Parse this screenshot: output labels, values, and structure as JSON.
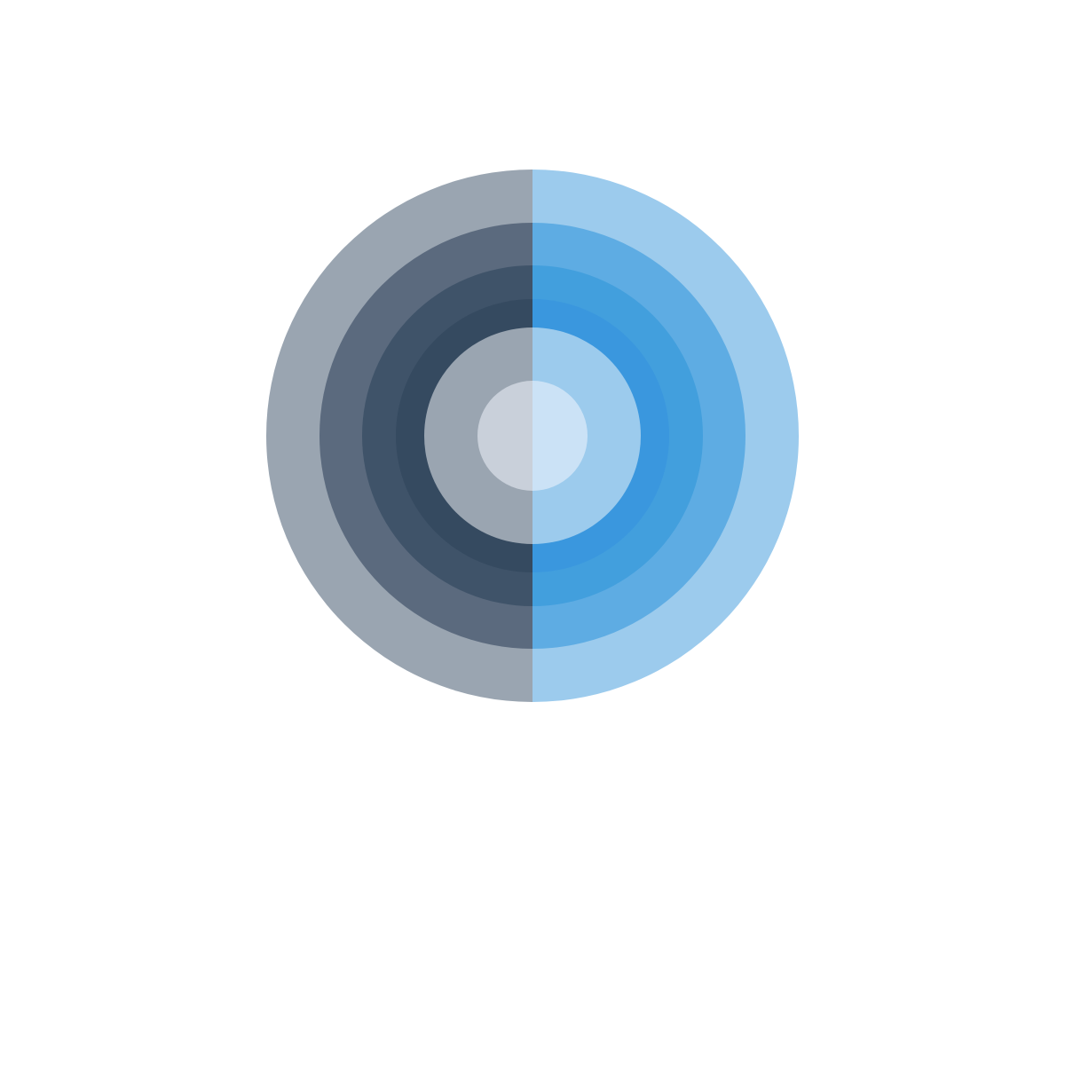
{
  "logo": {
    "icon": "concentric-circles-logo",
    "colors": {
      "left": [
        "#9aa5b1",
        "#5b6a7e",
        "#3f5369",
        "#354a60",
        "#9aa5b1",
        "#c9d0da"
      ],
      "right": [
        "#9ccbed",
        "#5eace3",
        "#429fdd",
        "#3a97de",
        "#9ccbed",
        "#cbe2f6"
      ]
    }
  },
  "wordmark": {
    "text": ""
  }
}
